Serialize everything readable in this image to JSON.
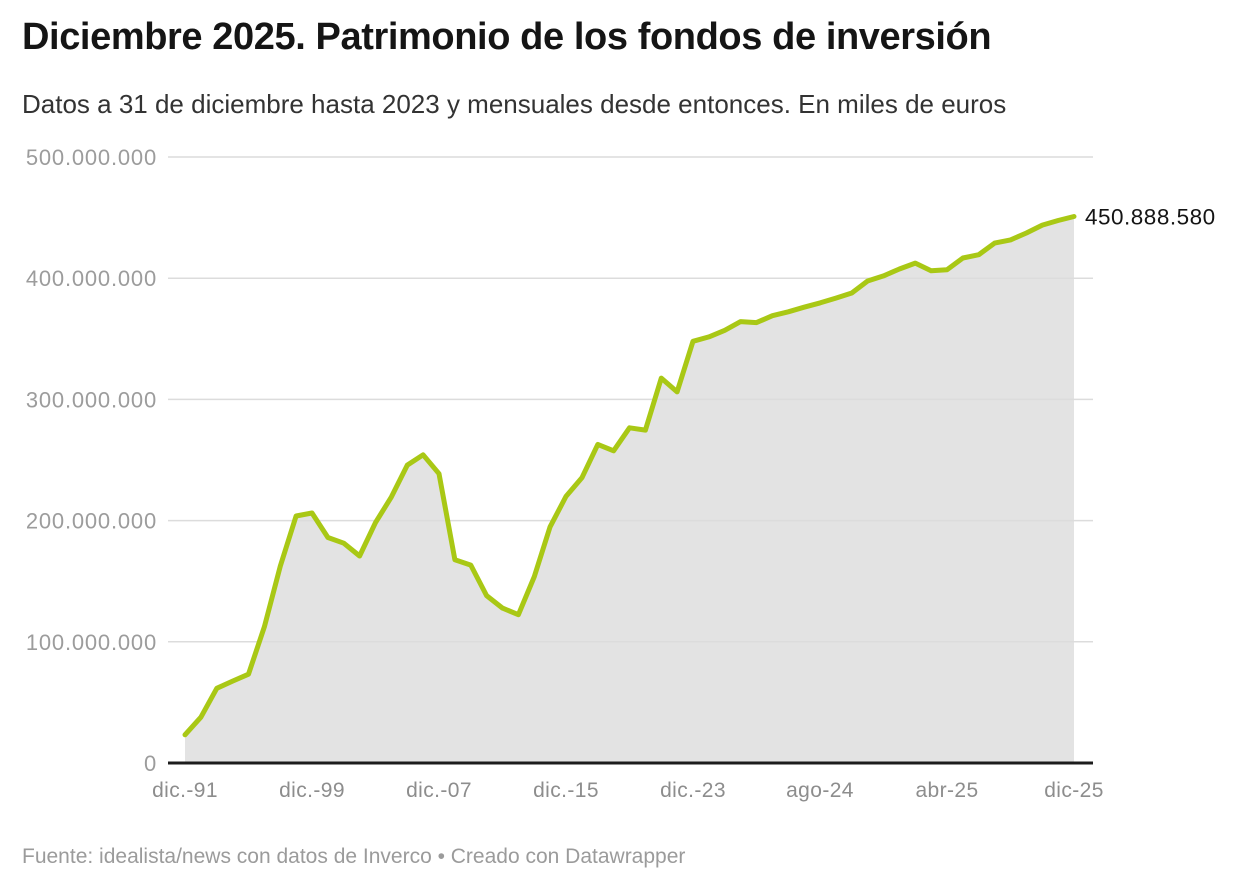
{
  "header": {
    "title": "Diciembre 2025. Patrimonio de los fondos de inversión",
    "subtitle": "Datos a 31 de diciembre hasta 2023 y mensuales desde entonces. En miles de euros"
  },
  "footer": {
    "text": "Fuente: idealista/news con datos de Inverco • Creado con Datawrapper"
  },
  "chart_data": {
    "type": "area",
    "title": "Diciembre 2025. Patrimonio de los fondos de inversión",
    "subtitle": "Datos a 31 de diciembre hasta 2023 y mensuales desde entonces. En miles de euros",
    "unit": "miles de euros",
    "x": [
      "dic-91",
      "dic-92",
      "dic-93",
      "dic-94",
      "dic-95",
      "dic-96",
      "dic-97",
      "dic-98",
      "dic-99",
      "dic-00",
      "dic-01",
      "dic-02",
      "dic-03",
      "dic-04",
      "dic-05",
      "dic-06",
      "dic-07",
      "dic-08",
      "dic-09",
      "dic-10",
      "dic-11",
      "dic-12",
      "dic-13",
      "dic-14",
      "dic-15",
      "dic-16",
      "dic-17",
      "dic-18",
      "dic-19",
      "dic-20",
      "dic-21",
      "dic-22",
      "dic-23",
      "ene-24",
      "feb-24",
      "mar-24",
      "abr-24",
      "may-24",
      "jun-24",
      "jul-24",
      "ago-24",
      "sep-24",
      "oct-24",
      "nov-24",
      "dic-24",
      "ene-25",
      "feb-25",
      "mar-25",
      "abr-25",
      "may-25",
      "jun-25",
      "jul-25",
      "ago-25",
      "sep-25",
      "oct-25",
      "nov-25",
      "dic-25"
    ],
    "values": [
      23234000,
      37763000,
      61614000,
      67557000,
      73282000,
      112440000,
      162450000,
      203774000,
      206280000,
      186068000,
      181323000,
      170801000,
      198366000,
      219572000,
      245823000,
      254322000,
      238717000,
      167644000,
      163243000,
      138080000,
      127772000,
      122322000,
      153834000,
      194844000,
      219964000,
      235341000,
      262847000,
      257551000,
      276557000,
      274707000,
      317547000,
      306198000,
      347912000,
      351600000,
      357000000,
      364200000,
      363400000,
      369100000,
      372300000,
      376100000,
      379600000,
      383600000,
      387800000,
      397700000,
      401900000,
      407600000,
      412500000,
      406100000,
      406900000,
      416700000,
      419400000,
      429000000,
      431600000,
      437300000,
      443800000,
      447600000,
      450888580
    ],
    "ylim": [
      0,
      500000000
    ],
    "y_ticks": [
      0,
      100000000,
      200000000,
      300000000,
      400000000,
      500000000
    ],
    "y_tick_labels": [
      "0",
      "100.000.000",
      "200.000.000",
      "300.000.000",
      "400.000.000",
      "500.000.000"
    ],
    "x_tick_indices": [
      0,
      8,
      16,
      24,
      32,
      40,
      48,
      56
    ],
    "x_tick_labels": [
      "dic.-91",
      "dic.-99",
      "dic.-07",
      "dic.-15",
      "dic.-23",
      "ago-24",
      "abr-25",
      "dic-25"
    ],
    "end_label": "450.888.580",
    "grid": true,
    "legend": "none",
    "line_color": "#a9c815",
    "area_color": "#e3e3e3",
    "grid_color": "#dcdcdc",
    "baseline_color": "#1c1c1c",
    "axis_text_color_y": "#9c9c9c",
    "axis_text_color_x": "#8d8d8d",
    "end_label_color": "#141414"
  }
}
